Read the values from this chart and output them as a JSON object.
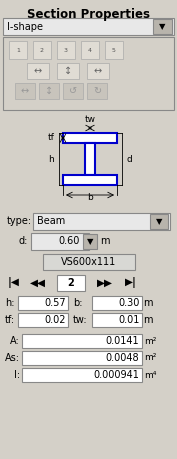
{
  "title": "Section Properties",
  "bg_color": "#d4d0c8",
  "white": "#ffffff",
  "dropdown_ishape": "I-shape",
  "type_label": "type:",
  "type_value": "Beam",
  "d_label": "d:",
  "d_value": "0.60",
  "d_unit": "m",
  "profile_name": "VS600x111",
  "nav_number": "2",
  "fields": [
    {
      "label": "h:",
      "value": "0.57",
      "label2": "b:",
      "value2": "0.30",
      "unit": "m"
    },
    {
      "label": "tf:",
      "value": "0.02",
      "label2": "tw:",
      "value2": "0.01",
      "unit": "m"
    }
  ],
  "props": [
    {
      "label": "A:",
      "value": "0.0141",
      "unit": "m²"
    },
    {
      "label": "As:",
      "value": "0.0048",
      "unit": "m²"
    },
    {
      "label": "I:",
      "value": "0.000941",
      "unit": "m⁴"
    }
  ],
  "ibeam_color": "#0000cc",
  "ann_color": "#000000",
  "title_fontsize": 8.5,
  "label_fontsize": 7,
  "small_fontsize": 6.5
}
